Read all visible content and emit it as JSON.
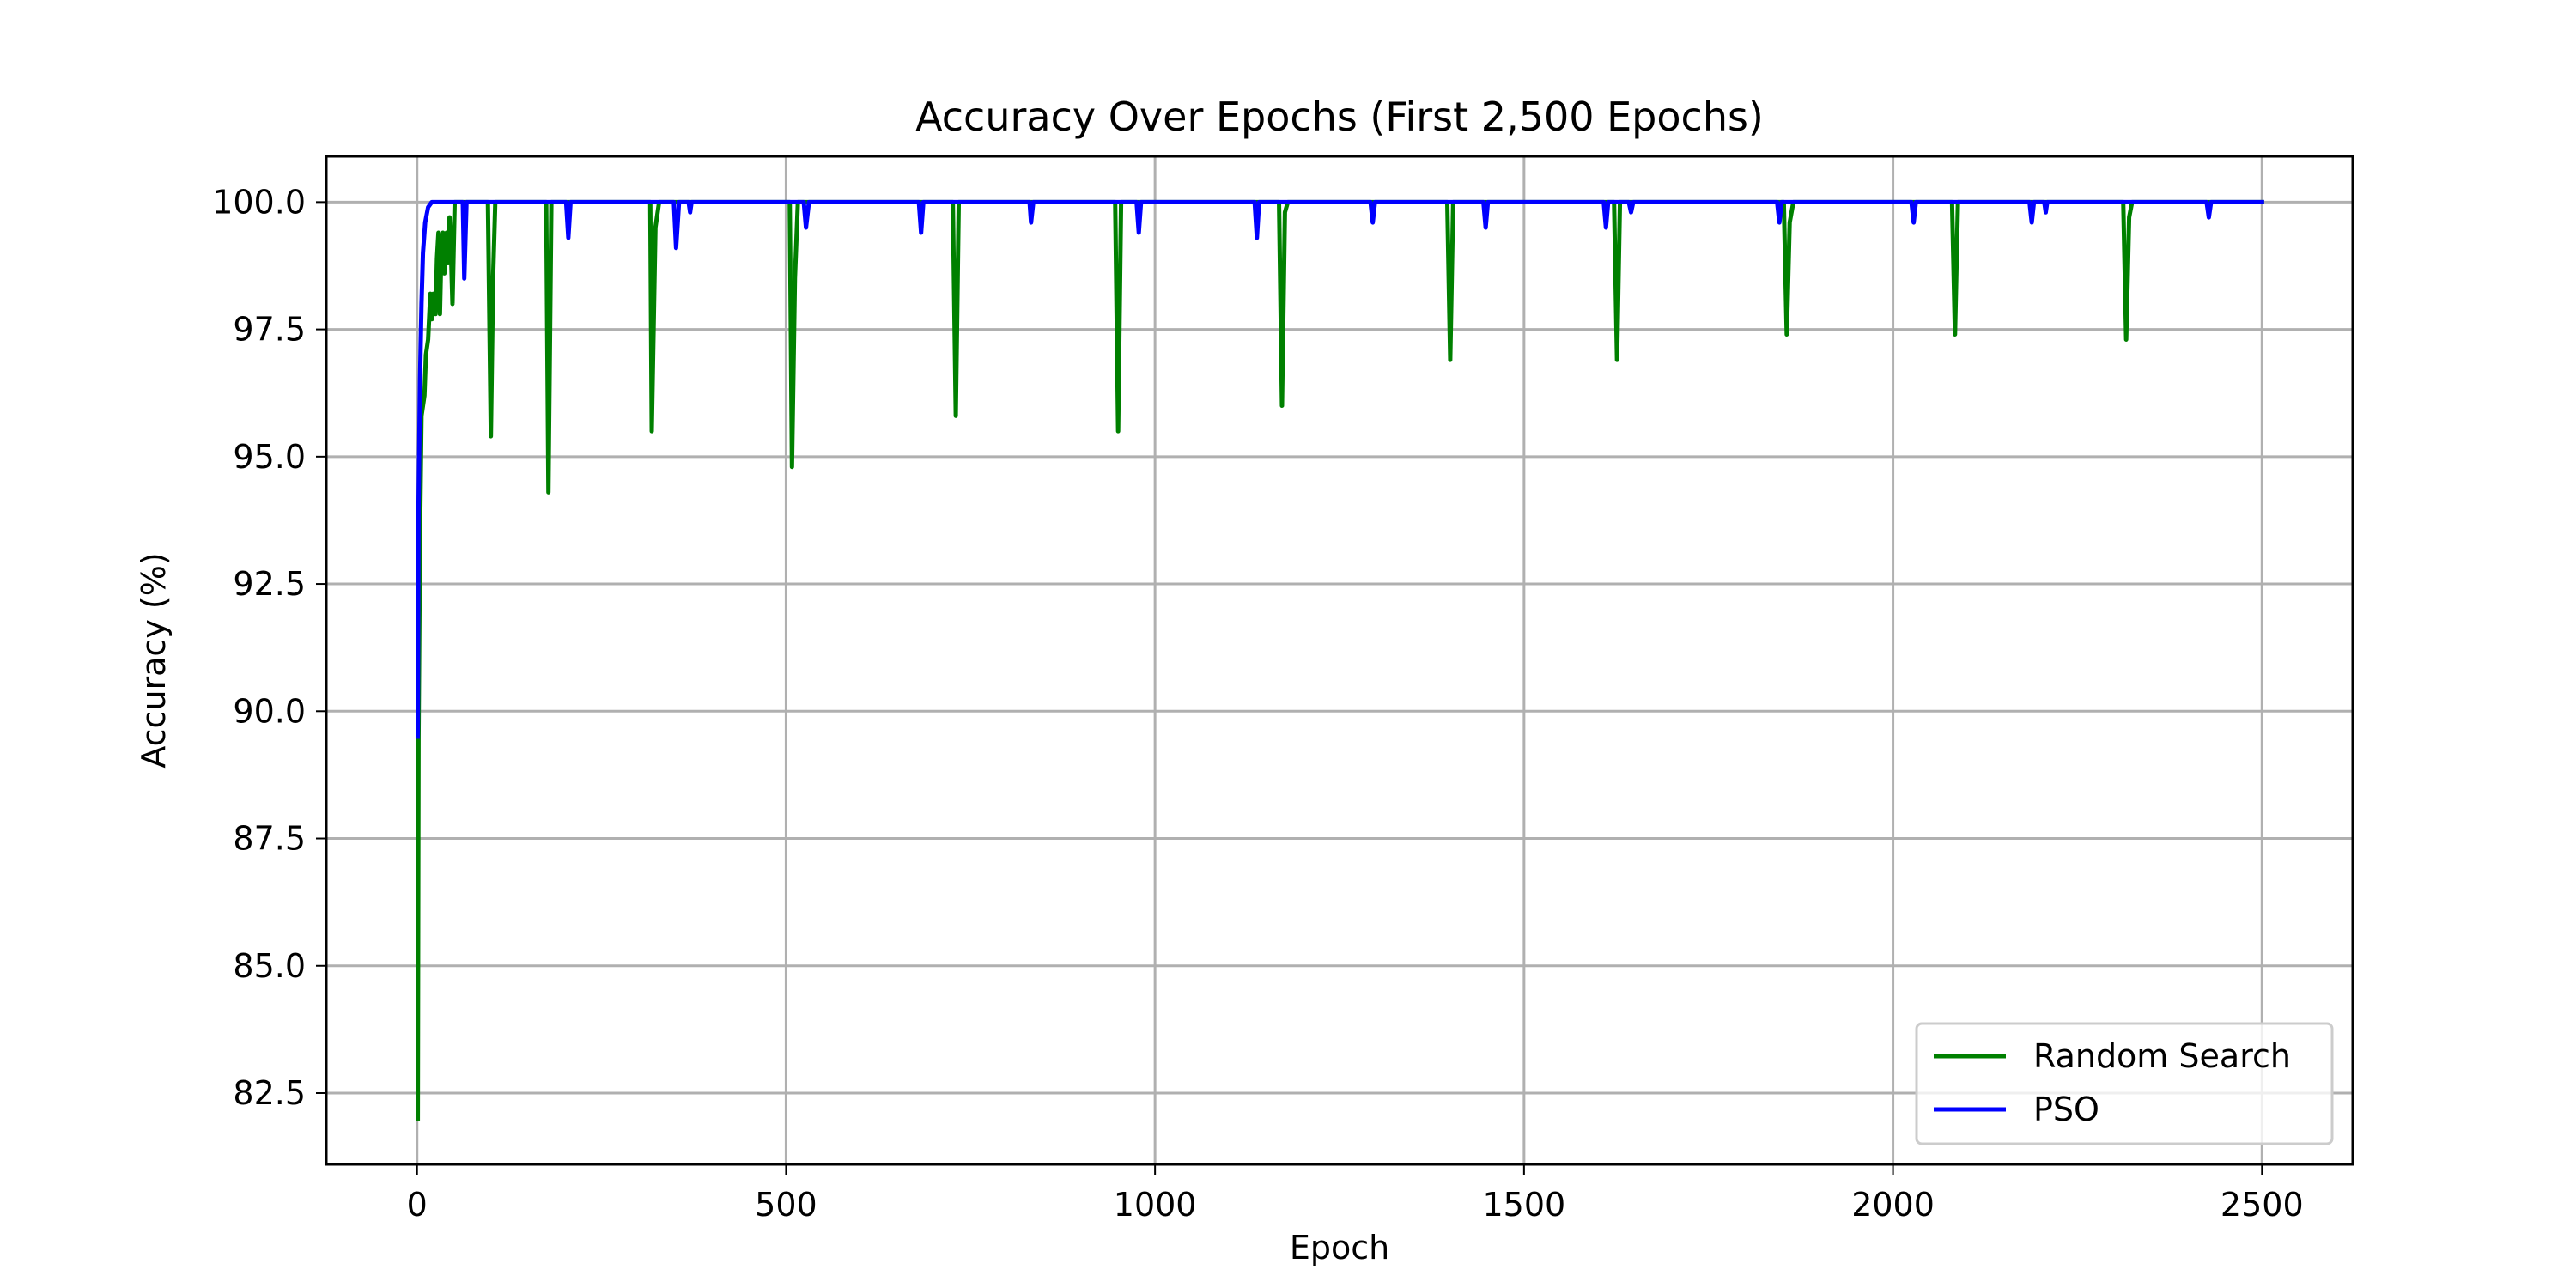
{
  "chart_data": {
    "type": "line",
    "title": "Accuracy Over Epochs (First 2,500 Epochs)",
    "xlabel": "Epoch",
    "ylabel": "Accuracy (%)",
    "xlim": [
      -123,
      2623
    ],
    "ylim": [
      81.1,
      100.9
    ],
    "x_ticks": [
      0,
      500,
      1000,
      1500,
      2000,
      2500
    ],
    "x_tick_labels": [
      "0",
      "500",
      "1000",
      "1500",
      "2000",
      "2500"
    ],
    "y_ticks": [
      82.5,
      85.0,
      87.5,
      90.0,
      92.5,
      95.0,
      97.5,
      100.0
    ],
    "y_tick_labels": [
      "82.5",
      "85.0",
      "87.5",
      "90.0",
      "92.5",
      "95.0",
      "97.5",
      "100.0"
    ],
    "grid": true,
    "legend_position": "lower-right",
    "series": [
      {
        "name": "Random Search",
        "color": "#008000",
        "points": [
          [
            1,
            82.0
          ],
          [
            2,
            89.5
          ],
          [
            4,
            93.5
          ],
          [
            6,
            95.8
          ],
          [
            8,
            96.0
          ],
          [
            10,
            96.2
          ],
          [
            12,
            97.0
          ],
          [
            15,
            97.3
          ],
          [
            18,
            98.2
          ],
          [
            20,
            97.7
          ],
          [
            22,
            98.2
          ],
          [
            25,
            97.8
          ],
          [
            27,
            98.9
          ],
          [
            29,
            99.4
          ],
          [
            31,
            97.8
          ],
          [
            33,
            99.1
          ],
          [
            35,
            99.4
          ],
          [
            37,
            98.6
          ],
          [
            40,
            99.4
          ],
          [
            42,
            98.8
          ],
          [
            44,
            99.7
          ],
          [
            46,
            99.0
          ],
          [
            48,
            98.0
          ],
          [
            51,
            100.0
          ],
          [
            96,
            100.0
          ],
          [
            100,
            95.4
          ],
          [
            103,
            98.5
          ],
          [
            106,
            100.0
          ],
          [
            175,
            100.0
          ],
          [
            178,
            94.3
          ],
          [
            182,
            100.0
          ],
          [
            316,
            100.0
          ],
          [
            318,
            95.5
          ],
          [
            323,
            99.5
          ],
          [
            328,
            100.0
          ],
          [
            505,
            100.0
          ],
          [
            508,
            94.8
          ],
          [
            512,
            98.5
          ],
          [
            516,
            100.0
          ],
          [
            726,
            100.0
          ],
          [
            730,
            95.8
          ],
          [
            734,
            100.0
          ],
          [
            946,
            100.0
          ],
          [
            950,
            95.5
          ],
          [
            954,
            100.0
          ],
          [
            1168,
            100.0
          ],
          [
            1172,
            96.0
          ],
          [
            1176,
            99.8
          ],
          [
            1180,
            100.0
          ],
          [
            1396,
            100.0
          ],
          [
            1400,
            96.9
          ],
          [
            1404,
            100.0
          ],
          [
            1622,
            100.0
          ],
          [
            1626,
            96.9
          ],
          [
            1630,
            100.0
          ],
          [
            1852,
            100.0
          ],
          [
            1856,
            97.4
          ],
          [
            1860,
            99.6
          ],
          [
            1865,
            100.0
          ],
          [
            2080,
            100.0
          ],
          [
            2084,
            97.4
          ],
          [
            2088,
            100.0
          ],
          [
            2312,
            100.0
          ],
          [
            2316,
            97.3
          ],
          [
            2320,
            99.7
          ],
          [
            2324,
            100.0
          ],
          [
            2500,
            100.0
          ]
        ]
      },
      {
        "name": "PSO",
        "color": "#0000ff",
        "points": [
          [
            1,
            89.5
          ],
          [
            2,
            94.0
          ],
          [
            4,
            96.5
          ],
          [
            6,
            98.0
          ],
          [
            8,
            99.0
          ],
          [
            11,
            99.6
          ],
          [
            15,
            99.9
          ],
          [
            20,
            100.0
          ],
          [
            62,
            100.0
          ],
          [
            64,
            98.5
          ],
          [
            67,
            100.0
          ],
          [
            202,
            100.0
          ],
          [
            205,
            99.3
          ],
          [
            208,
            100.0
          ],
          [
            348,
            100.0
          ],
          [
            351,
            99.1
          ],
          [
            355,
            100.0
          ],
          [
            368,
            100.0
          ],
          [
            370,
            99.8
          ],
          [
            372,
            100.0
          ],
          [
            524,
            100.0
          ],
          [
            527,
            99.5
          ],
          [
            531,
            100.0
          ],
          [
            680,
            100.0
          ],
          [
            683,
            99.4
          ],
          [
            686,
            100.0
          ],
          [
            830,
            100.0
          ],
          [
            832,
            99.6
          ],
          [
            835,
            100.0
          ],
          [
            975,
            100.0
          ],
          [
            978,
            99.4
          ],
          [
            981,
            100.0
          ],
          [
            1135,
            100.0
          ],
          [
            1138,
            99.3
          ],
          [
            1141,
            100.0
          ],
          [
            1292,
            100.0
          ],
          [
            1295,
            99.6
          ],
          [
            1298,
            100.0
          ],
          [
            1445,
            100.0
          ],
          [
            1448,
            99.5
          ],
          [
            1451,
            100.0
          ],
          [
            1608,
            100.0
          ],
          [
            1611,
            99.5
          ],
          [
            1614,
            100.0
          ],
          [
            1642,
            100.0
          ],
          [
            1645,
            99.8
          ],
          [
            1648,
            100.0
          ],
          [
            1843,
            100.0
          ],
          [
            1846,
            99.6
          ],
          [
            1849,
            100.0
          ],
          [
            2025,
            100.0
          ],
          [
            2028,
            99.6
          ],
          [
            2031,
            100.0
          ],
          [
            2185,
            100.0
          ],
          [
            2188,
            99.6
          ],
          [
            2191,
            100.0
          ],
          [
            2205,
            100.0
          ],
          [
            2207,
            99.8
          ],
          [
            2209,
            100.0
          ],
          [
            2425,
            100.0
          ],
          [
            2428,
            99.7
          ],
          [
            2431,
            100.0
          ],
          [
            2500,
            100.0
          ]
        ]
      }
    ]
  }
}
